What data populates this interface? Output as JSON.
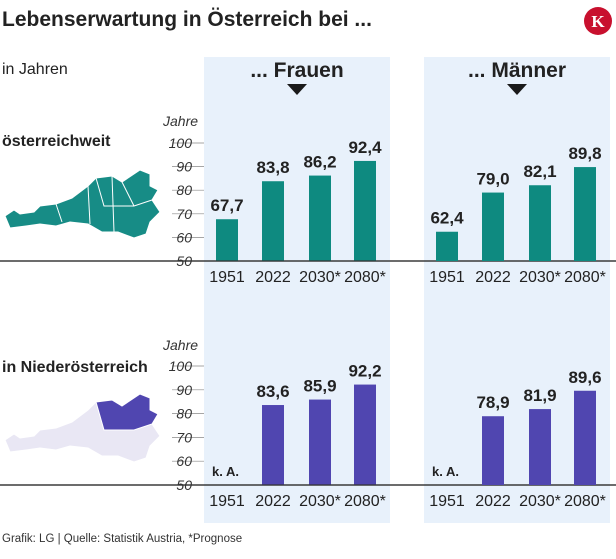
{
  "header": {
    "title": "Lebenserwartung in Österreich bei ...",
    "subtitle": "in Jahren",
    "logo_letter": "K",
    "logo_color": "#c8102e"
  },
  "footer": {
    "source": "Grafik: LG | Quelle: Statistik Austria, *Prognose"
  },
  "colors": {
    "panel_bg": "#e8f1fb",
    "teal": "#0e8a80",
    "teal_map": "#178c86",
    "purple": "#5046b0",
    "purple_light": "#e9e7f4"
  },
  "chart_data": [
    {
      "type": "bar",
      "row_label": "österreichweit",
      "group": "... Frauen",
      "categories": [
        "1951",
        "2022",
        "2030*",
        "2080*"
      ],
      "values": [
        67.7,
        83.8,
        86.2,
        92.4
      ],
      "value_labels": [
        "67,7",
        "83,8",
        "86,2",
        "92,4"
      ],
      "ylabel": "Jahre",
      "ylim": [
        50,
        100
      ],
      "yticks": [
        "50",
        "60",
        "70",
        "80",
        "90",
        "100"
      ],
      "color": "#0e8a80"
    },
    {
      "type": "bar",
      "row_label": "österreichweit",
      "group": "... Männer",
      "categories": [
        "1951",
        "2022",
        "2030*",
        "2080*"
      ],
      "values": [
        62.4,
        79.0,
        82.1,
        89.8
      ],
      "value_labels": [
        "62,4",
        "79,0",
        "82,1",
        "89,8"
      ],
      "ylabel": "",
      "ylim": [
        50,
        100
      ],
      "yticks": [],
      "color": "#0e8a80"
    },
    {
      "type": "bar",
      "row_label": "in Niederösterreich",
      "group": "... Frauen",
      "categories": [
        "1951",
        "2022",
        "2030*",
        "2080*"
      ],
      "values": [
        null,
        83.6,
        85.9,
        92.2
      ],
      "value_labels": [
        "k. A.",
        "83,6",
        "85,9",
        "92,2"
      ],
      "ylabel": "Jahre",
      "ylim": [
        50,
        100
      ],
      "yticks": [
        "50",
        "60",
        "70",
        "80",
        "90",
        "100"
      ],
      "color": "#5046b0"
    },
    {
      "type": "bar",
      "row_label": "in Niederösterreich",
      "group": "... Männer",
      "categories": [
        "1951",
        "2022",
        "2030*",
        "2080*"
      ],
      "values": [
        null,
        78.9,
        81.9,
        89.6
      ],
      "value_labels": [
        "k. A.",
        "78,9",
        "81,9",
        "89,6"
      ],
      "ylabel": "",
      "ylim": [
        50,
        100
      ],
      "yticks": [],
      "color": "#5046b0"
    }
  ]
}
